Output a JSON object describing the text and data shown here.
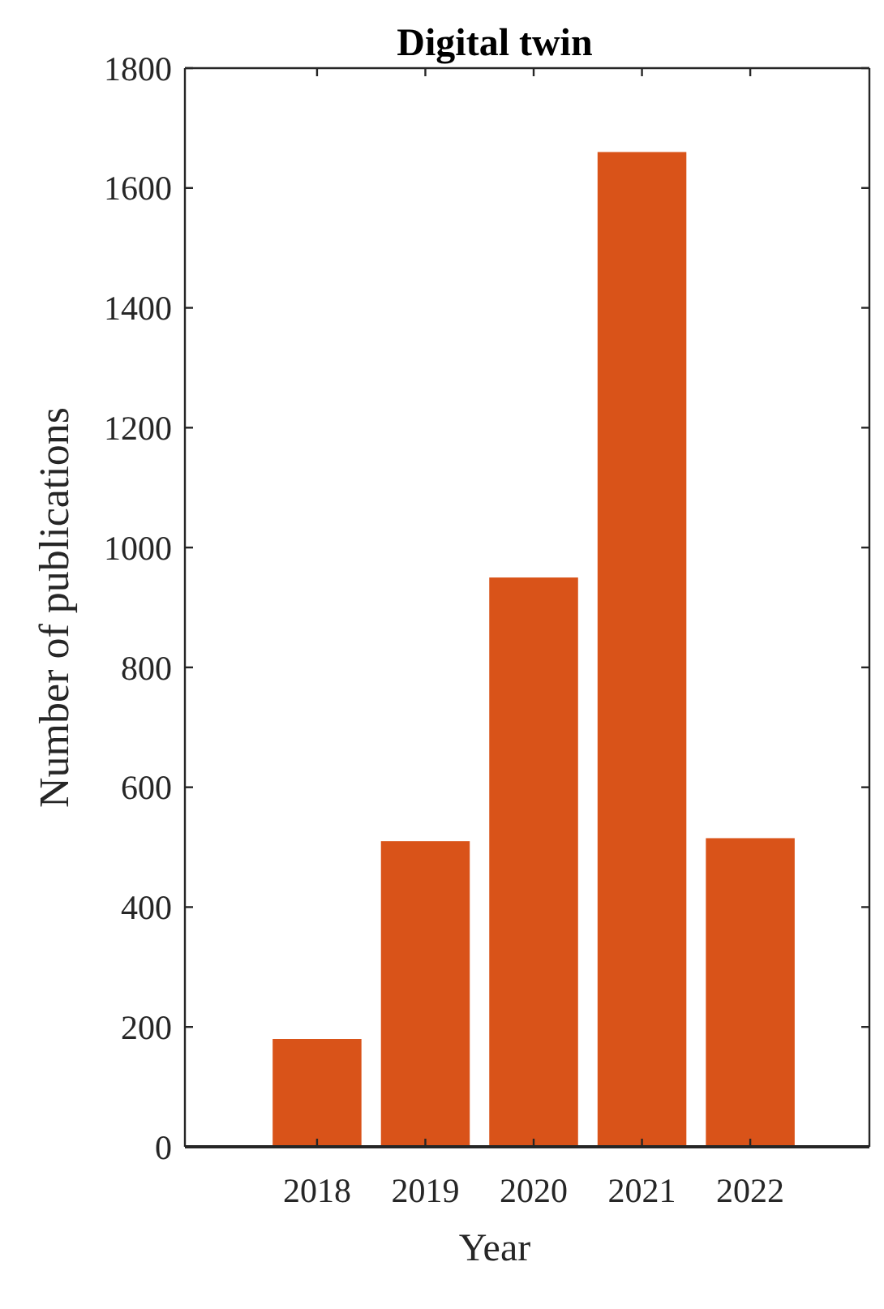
{
  "chart_data": {
    "type": "bar",
    "title": "Digital twin",
    "xlabel": "Year",
    "ylabel": "Number of publications",
    "categories": [
      "2018",
      "2019",
      "2020",
      "2021",
      "2022"
    ],
    "values": [
      180,
      510,
      950,
      1660,
      515
    ],
    "color": "#d95319",
    "ylim": [
      0,
      1800
    ],
    "yticks": [
      0,
      200,
      400,
      600,
      800,
      1000,
      1200,
      1400,
      1600,
      1800
    ],
    "grid": false
  }
}
